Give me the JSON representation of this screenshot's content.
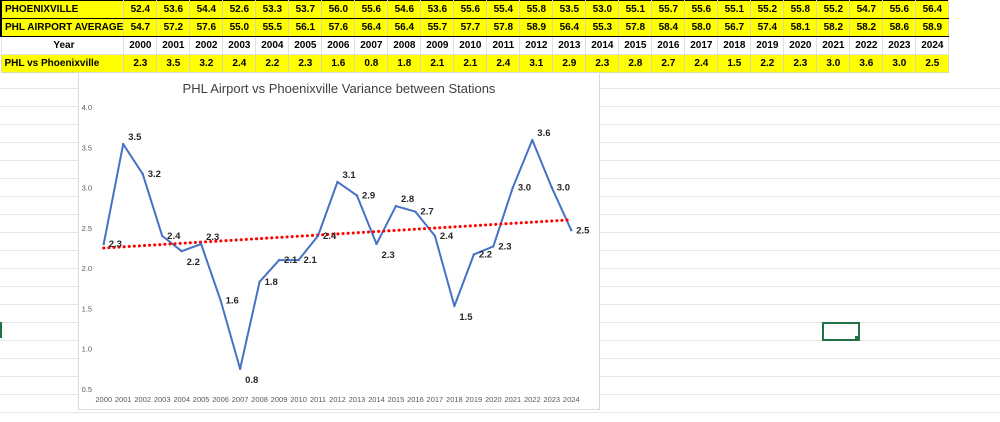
{
  "table": {
    "row1_label": "PHOENIXVILLE",
    "row2_label": "PHL AIRPORT AVERAGE",
    "year_label": "Year",
    "variance_label": "PHL vs Phoenixville",
    "years": [
      "2000",
      "2001",
      "2002",
      "2003",
      "2004",
      "2005",
      "2006",
      "2007",
      "2008",
      "2009",
      "2010",
      "2011",
      "2012",
      "2013",
      "2014",
      "2015",
      "2016",
      "2017",
      "2018",
      "2019",
      "2020",
      "2021",
      "2022",
      "2023",
      "2024"
    ],
    "phoenixville": [
      "52.4",
      "53.6",
      "54.4",
      "52.6",
      "53.3",
      "53.7",
      "56.0",
      "55.6",
      "54.6",
      "53.6",
      "55.6",
      "55.4",
      "55.8",
      "53.5",
      "53.0",
      "55.1",
      "55.7",
      "55.6",
      "55.1",
      "55.2",
      "55.8",
      "55.2",
      "54.7",
      "55.6",
      "56.4"
    ],
    "phl": [
      "54.7",
      "57.2",
      "57.6",
      "55.0",
      "55.5",
      "56.1",
      "57.6",
      "56.4",
      "56.4",
      "55.7",
      "57.7",
      "57.8",
      "58.9",
      "56.4",
      "55.3",
      "57.8",
      "58.4",
      "58.0",
      "56.7",
      "57.4",
      "58.1",
      "58.2",
      "58.2",
      "58.6",
      "58.9"
    ],
    "variance": [
      "2.3",
      "3.5",
      "3.2",
      "2.4",
      "2.2",
      "2.3",
      "1.6",
      "0.8",
      "1.8",
      "2.1",
      "2.1",
      "2.4",
      "3.1",
      "2.9",
      "2.3",
      "2.8",
      "2.7",
      "2.4",
      "1.5",
      "2.2",
      "2.3",
      "3.0",
      "3.6",
      "3.0",
      "2.5"
    ]
  },
  "colors": {
    "highlight": "#ffff00",
    "line": "#4472c4",
    "trend": "#ff0000",
    "selection": "#217346"
  },
  "chart_data": {
    "type": "line",
    "title": "PHL Airport vs Phoenixville Variance between Stations",
    "xlabel": "",
    "ylabel": "",
    "x": [
      "2000",
      "2001",
      "2002",
      "2003",
      "2004",
      "2005",
      "2006",
      "2007",
      "2008",
      "2009",
      "2010",
      "2011",
      "2012",
      "2013",
      "2014",
      "2015",
      "2016",
      "2017",
      "2018",
      "2019",
      "2020",
      "2021",
      "2022",
      "2023",
      "2024"
    ],
    "series": [
      {
        "name": "PHL vs Phoenixville",
        "values": [
          2.3,
          3.54,
          3.17,
          2.4,
          2.21,
          2.3,
          1.6,
          0.75,
          1.83,
          2.1,
          2.1,
          2.4,
          3.07,
          2.9,
          2.3,
          2.77,
          2.7,
          2.4,
          1.53,
          2.17,
          2.27,
          3.0,
          3.59,
          3.0,
          2.47
        ],
        "labels": [
          "2.3",
          "3.5",
          "3.2",
          "2.4",
          "2.2",
          "2.3",
          "1.6",
          "0.8",
          "1.8",
          "2.1",
          "2.1",
          "2.4",
          "3.1",
          "2.9",
          "2.3",
          "2.8",
          "2.7",
          "2.4",
          "1.5",
          "2.2",
          "2.3",
          "3.0",
          "3.6",
          "3.0",
          "2.5"
        ]
      }
    ],
    "trendline": {
      "type": "linear",
      "start": 2.25,
      "end": 2.6,
      "style": "dotted"
    },
    "ylim": [
      0.5,
      4.0
    ],
    "yticks": [
      "0.5",
      "1.0",
      "1.5",
      "2.0",
      "2.5",
      "3.0",
      "3.5",
      "4.0"
    ],
    "grid": false,
    "legend": "none"
  }
}
